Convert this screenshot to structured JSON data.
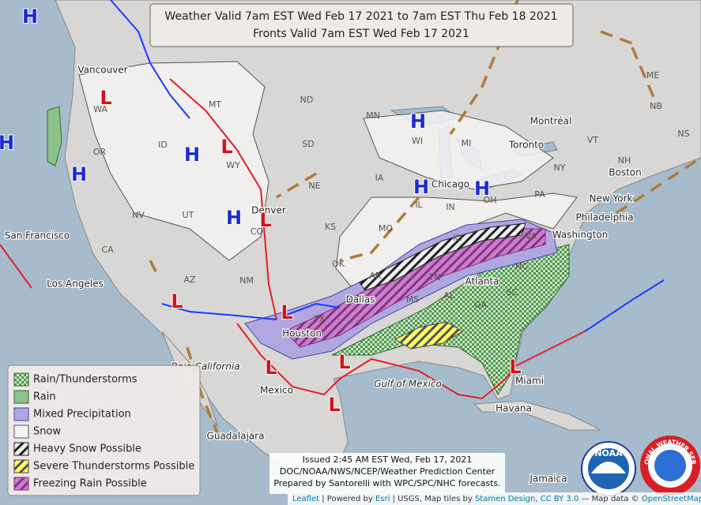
{
  "title": {
    "line1": "Weather Valid 7am EST Wed Feb 17 2021 to 7am EST Thu Feb 18 2021",
    "line2": "Fronts Valid 7am EST Wed Feb 17 2021"
  },
  "legend": [
    "Rain/Thunderstorms",
    "Rain",
    "Mixed Precipitation",
    "Snow",
    "Heavy Snow Possible",
    "Severe Thunderstorms Possible",
    "Freezing Rain Possible"
  ],
  "issued": [
    "Issued 2:45 AM EST Wed, Feb 17, 2021",
    "DOC/NOAA/NWS/NCEP/Weather Prediction Center",
    "Prepared by Santorelli with WPC/SPC/NHC forecasts."
  ],
  "attribution": [
    {
      "text": "Leaflet",
      "link": true
    },
    {
      "text": " | Powered by ",
      "link": false
    },
    {
      "text": "Esri",
      "link": true
    },
    {
      "text": " | USGS, Map tiles by ",
      "link": false
    },
    {
      "text": "Stamen Design",
      "link": true
    },
    {
      "text": ", ",
      "link": false
    },
    {
      "text": "CC BY 3.0",
      "link": true
    },
    {
      "text": " — Map data © ",
      "link": false
    },
    {
      "text": "OpenStreetMap",
      "link": true
    }
  ],
  "places": [
    "Vancouver",
    "WA",
    "MT",
    "ND",
    "MN",
    "WI",
    "MI",
    "Montréal",
    "Toronto",
    "NB",
    "ME",
    "NH",
    "VT",
    "NY",
    "Boston",
    "New York",
    "Philadelphia",
    "Washington",
    "PA",
    "OH",
    "IN",
    "IL",
    "IA",
    "NE",
    "SD",
    "WY",
    "ID",
    "OR",
    "NV",
    "UT",
    "CO",
    "Denver",
    "KS",
    "MO",
    "KY",
    "VA",
    "NC",
    "TN",
    "SC",
    "GA",
    "AL",
    "MS",
    "AR",
    "OK",
    "TX",
    "NM",
    "AZ",
    "CA",
    "San Francisco",
    "Los Angeles",
    "Baja California",
    "Mexico",
    "Guadalajara",
    "Houston",
    "Dallas",
    "Atlanta",
    "Miami",
    "Havana",
    "Gulf of Mexico",
    "Jamaica",
    "Chicago",
    "NS"
  ],
  "pressure_centers": [
    "H",
    "H",
    "H",
    "H",
    "H",
    "H",
    "H",
    "H",
    "L",
    "L",
    "L",
    "L",
    "L",
    "L",
    "L",
    "L",
    "L"
  ],
  "logos": {
    "noaa": "NOAA",
    "nws": "NATIONAL WEATHER SERVICE"
  }
}
